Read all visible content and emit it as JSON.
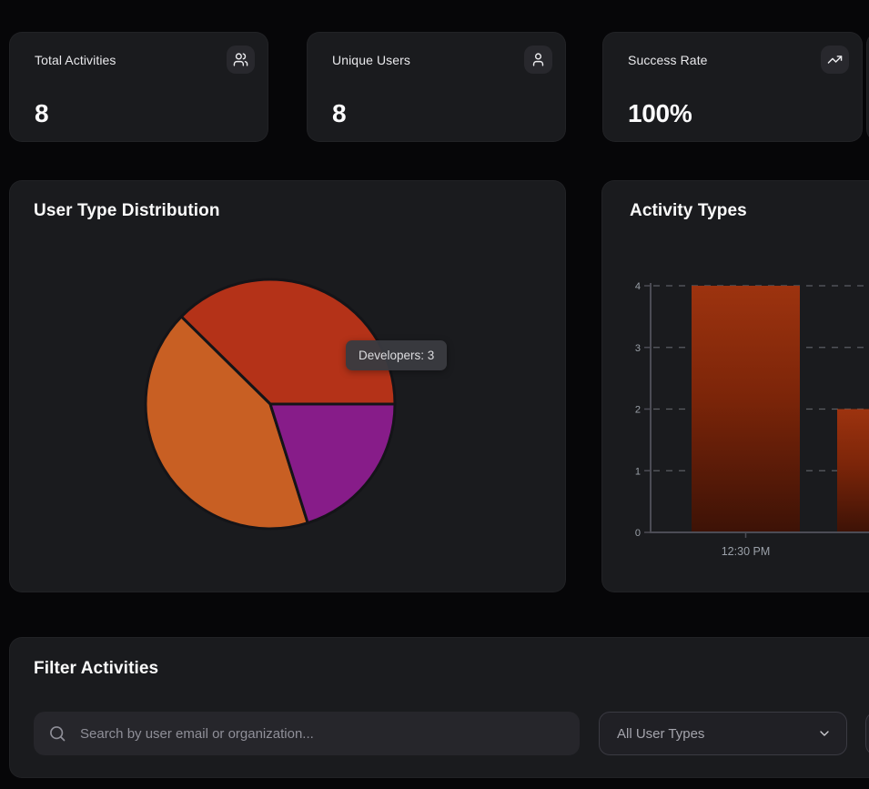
{
  "stat_cards": [
    {
      "label": "Total Activities",
      "value": "8",
      "icon": "users-icon"
    },
    {
      "label": "Unique Users",
      "value": "8",
      "icon": "user-icon"
    },
    {
      "label": "Success Rate",
      "value": "100%",
      "icon": "trending-up-icon"
    }
  ],
  "pie_card": {
    "title": "User Type Distribution"
  },
  "bar_card": {
    "title": "Activity Types"
  },
  "filter": {
    "title": "Filter Activities",
    "search_placeholder": "Search by user email or organization...",
    "user_type_dropdown": "All User Types"
  },
  "colors": {
    "page_bg": "#060608",
    "card_bg": "#1a1b1e",
    "pie_red": "#b43218",
    "pie_orange": "#c85f23",
    "pie_purple": "#871c89",
    "axis": "#4c4c55",
    "grid": "#5b5d63",
    "axis_text": "#9aa0a8"
  },
  "chart_data": [
    {
      "type": "pie",
      "title": "User Type Distribution",
      "tooltip": "Developers: 3",
      "legend": "none",
      "slices": [
        {
          "label": "Developers",
          "value": 3,
          "color": "#b43218",
          "start_deg": 0,
          "end_deg": 135.5
        },
        {
          "label": "",
          "color": "#c85f23",
          "start_deg": 135.5,
          "end_deg": 287.5
        },
        {
          "label": "",
          "color": "#871c89",
          "start_deg": 287.5,
          "end_deg": 360
        }
      ]
    },
    {
      "type": "bar",
      "title": "Activity Types",
      "x_labels": [
        "12:30 PM",
        ""
      ],
      "values": [
        4,
        2
      ],
      "ylim": [
        0,
        4
      ],
      "yticks": [
        0,
        1,
        2,
        3,
        4
      ],
      "grid": "dashed-horizontal",
      "bar_gradient_top": "#9d330f",
      "bar_gradient_mid": "#7c2509",
      "bar_gradient_bottom": "#3d1206"
    }
  ]
}
